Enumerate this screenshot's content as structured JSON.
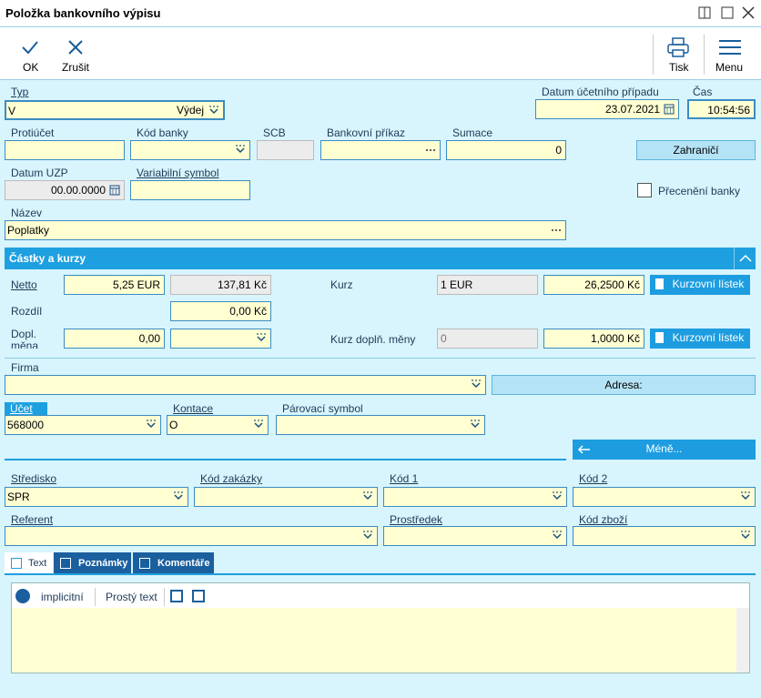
{
  "window": {
    "title": "Položka bankovního výpisu"
  },
  "toolbar": {
    "ok": "OK",
    "cancel": "Zrušit",
    "print": "Tisk",
    "menu": "Menu"
  },
  "header": {
    "type": {
      "label": "Typ",
      "code": "V",
      "value": "Výdej"
    },
    "accounting_date": {
      "label": "Datum účetního případu",
      "value": "23.07.2021"
    },
    "time": {
      "label": "Čas",
      "value": "10:54:56"
    },
    "counter_account": {
      "label": "Protiúčet"
    },
    "bank_code": {
      "label": "Kód banky"
    },
    "scb": {
      "label": "SCB"
    },
    "bank_order": {
      "label": "Bankovní příkaz"
    },
    "summation": {
      "label": "Sumace",
      "value": "0"
    },
    "foreign_button": "Zahraničí",
    "tax_date": {
      "label": "Datum UZP",
      "value": "00.00.0000"
    },
    "variable_symbol": {
      "label": "Variabilní symbol"
    },
    "bank_revaluation": {
      "label": "Přecenění banky"
    },
    "name": {
      "label": "Název",
      "value": "Poplatky"
    }
  },
  "amounts": {
    "title": "Částky a kurzy",
    "net": {
      "label": "Netto",
      "foreign": "5,25 EUR",
      "domestic": "137,81 Kč"
    },
    "rate": {
      "label": "Kurz",
      "unit": "1 EUR",
      "value": "26,2500 Kč",
      "button": "Kurzovní lístek"
    },
    "difference": {
      "label": "Rozdíl",
      "value": "0,00 Kč"
    },
    "extra_currency": {
      "label": "Dopl. měna",
      "value": "0,00"
    },
    "extra_rate": {
      "label": "Kurz doplň. měny",
      "unit": "0",
      "value": "1,0000 Kč",
      "button": "Kurzovní lístek"
    }
  },
  "partner": {
    "company": {
      "label": "Firma"
    },
    "address_button": "Adresa:"
  },
  "accounting": {
    "account": {
      "label": "Účet",
      "value": "568000"
    },
    "posting": {
      "label": "Kontace",
      "value": "O"
    },
    "matching_symbol": {
      "label": "Párovací symbol"
    },
    "less_button": "Méně..."
  },
  "codes": {
    "center": {
      "label": "Středisko",
      "value": "SPR"
    },
    "order_code": {
      "label": "Kód zakázky"
    },
    "code1": {
      "label": "Kód 1"
    },
    "code2": {
      "label": "Kód 2"
    },
    "referent": {
      "label": "Referent"
    },
    "resource": {
      "label": "Prostředek"
    },
    "goods_code": {
      "label": "Kód zboží"
    }
  },
  "tabs": [
    "Text",
    "Poznámky",
    "Komentáře"
  ],
  "editor": {
    "language": "implicitní",
    "format": "Prostý text"
  }
}
